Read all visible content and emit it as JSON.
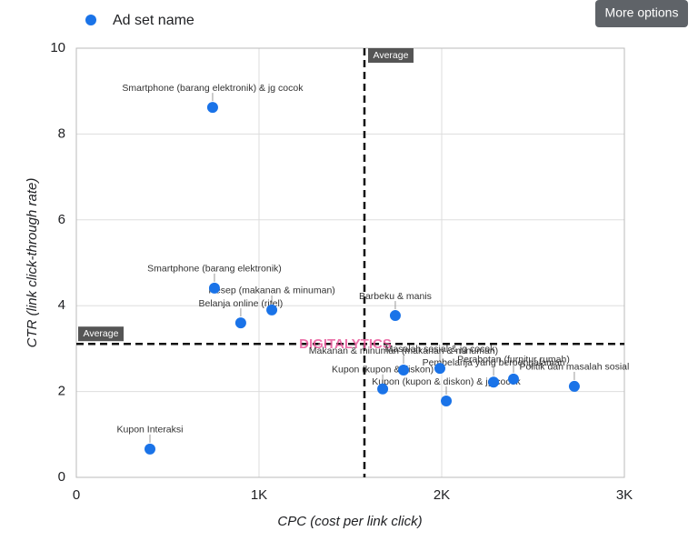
{
  "chart_data": {
    "type": "scatter",
    "x_label": "CPC (cost per link click)",
    "y_label": "CTR (link click-through rate)",
    "xlim": [
      0,
      3000
    ],
    "ylim": [
      0,
      10
    ],
    "xticks": [
      0,
      {
        "value": 1000,
        "label": "1K"
      },
      {
        "value": 2000,
        "label": "2K"
      },
      {
        "value": 3000,
        "label": "3K"
      }
    ],
    "yticks": [
      0,
      2,
      4,
      6,
      8,
      10
    ],
    "grid": true,
    "legend": "top-left",
    "series": [
      {
        "name": "Ad set name",
        "color": "#1a73e8",
        "point_labels": [
          "Smartphone (barang elektronik) & jg cocok",
          "Smartphone (barang elektronik)",
          "Resep (makanan & minuman)",
          "Belanja online (ritel)",
          "Barbeku & manis",
          "Kupon Interaksi",
          "Makanan & minuman (makanan & minuman)",
          "Kupon (kupon & diskon)",
          "Masalah sosial & jg cocok",
          "Kupon (kupon & diskon) & jg cocok",
          "Pembelanja yang berpengalaman",
          "Perabotan (furnitur rumah)",
          "Politik dan masalah sosial"
        ],
        "x": [
          746,
          756,
          1070,
          900,
          1746,
          403,
          1791,
          1677,
          1990,
          2025,
          2284,
          2393,
          2726
        ],
        "values": [
          8.62,
          4.41,
          3.9,
          3.6,
          3.77,
          0.66,
          2.5,
          2.06,
          2.54,
          1.78,
          2.22,
          2.29,
          2.12
        ]
      }
    ],
    "reference_lines": [
      {
        "axis": "x",
        "value": 1577,
        "label": "Average"
      },
      {
        "axis": "y",
        "value": 3.11,
        "label": "Average"
      }
    ],
    "watermark": "DIGITALYTICS",
    "button": "More options"
  }
}
